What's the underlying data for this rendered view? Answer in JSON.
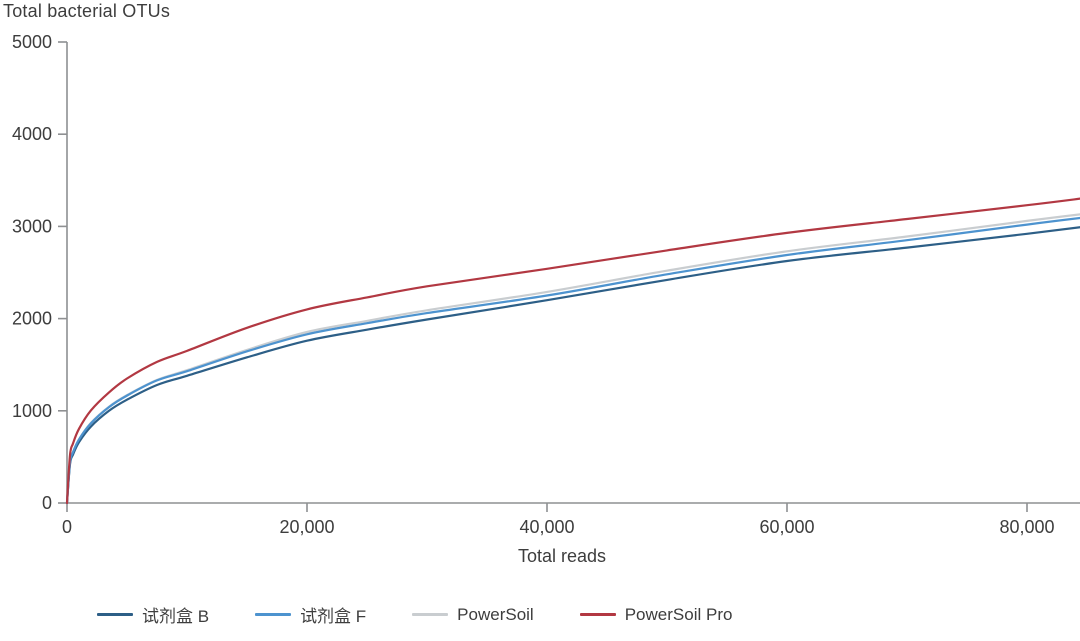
{
  "figure": {
    "background": "#ffffff"
  },
  "chart_data": {
    "type": "line",
    "title": "Total bacterial OTUs",
    "xlabel": "Total reads",
    "ylabel": "Total bacterial OTUs",
    "xlim": [
      0,
      85000
    ],
    "ylim": [
      0,
      5000
    ],
    "grid": false,
    "legend_position": "bottom",
    "axis_color": "#8e9092",
    "text_color": "#3d3d3d",
    "x_ticks": [
      0,
      20000,
      40000,
      60000,
      80000
    ],
    "x_tick_labels": [
      "0",
      "20,000",
      "40,000",
      "60,000",
      "80,000"
    ],
    "y_ticks": [
      0,
      1000,
      2000,
      3000,
      4000,
      5000
    ],
    "y_tick_labels": [
      "0",
      "1000",
      "2000",
      "3000",
      "4000",
      "5000"
    ],
    "x": [
      0,
      250,
      500,
      1000,
      2000,
      3500,
      5000,
      7500,
      10000,
      15000,
      20000,
      25000,
      30000,
      40000,
      50000,
      60000,
      70000,
      80000,
      85000
    ],
    "series": [
      {
        "id": "kit-b",
        "name": "试剂盒 B",
        "color": "#2d5f87",
        "values": [
          0,
          420,
          525,
          660,
          830,
          1000,
          1120,
          1280,
          1380,
          1580,
          1760,
          1880,
          1990,
          2200,
          2420,
          2625,
          2770,
          2920,
          3000
        ]
      },
      {
        "id": "kit-f",
        "name": "试剂盒 F",
        "color": "#4d93cf",
        "values": [
          0,
          440,
          550,
          690,
          865,
          1040,
          1165,
          1330,
          1430,
          1645,
          1830,
          1950,
          2060,
          2250,
          2480,
          2690,
          2850,
          3020,
          3100
        ]
      },
      {
        "id": "powersoil",
        "name": "PowerSoil",
        "color": "#c9cdd0",
        "values": [
          0,
          440,
          550,
          690,
          870,
          1045,
          1170,
          1335,
          1440,
          1660,
          1855,
          1975,
          2090,
          2290,
          2520,
          2730,
          2890,
          3060,
          3140
        ]
      },
      {
        "id": "powersoil-pro",
        "name": "PowerSoil Pro",
        "color": "#b23842",
        "values": [
          0,
          520,
          645,
          805,
          1005,
          1200,
          1350,
          1530,
          1650,
          1900,
          2100,
          2230,
          2350,
          2540,
          2740,
          2930,
          3080,
          3230,
          3310
        ]
      }
    ]
  }
}
